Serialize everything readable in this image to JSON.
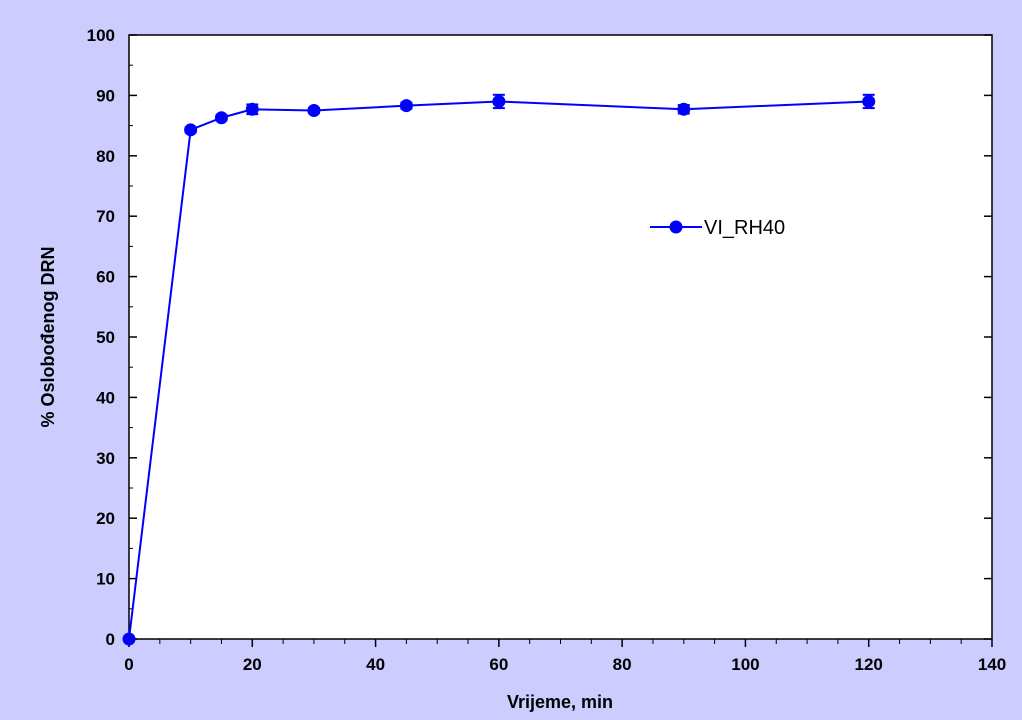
{
  "chart_data": {
    "type": "line",
    "title": "",
    "xlabel": "Vrijeme, min",
    "ylabel": "% Oslobođenog DRN",
    "xlim": [
      0,
      140
    ],
    "ylim": [
      0,
      100
    ],
    "xticks": [
      0,
      20,
      40,
      60,
      80,
      100,
      120,
      140
    ],
    "yticks": [
      0,
      10,
      20,
      30,
      40,
      50,
      60,
      70,
      80,
      90,
      100
    ],
    "grid": false,
    "legend_position": "right",
    "series": [
      {
        "name": "VI_RH40",
        "color": "#0000ff",
        "marker": "circle",
        "x": [
          0,
          10,
          15,
          20,
          30,
          45,
          60,
          90,
          120
        ],
        "y": [
          0,
          84.3,
          86.3,
          87.7,
          87.5,
          88.3,
          89.0,
          87.7,
          89.0
        ],
        "error": [
          0,
          0.4,
          0.4,
          0.8,
          0.4,
          0.5,
          1.1,
          0.7,
          1.1
        ]
      }
    ]
  },
  "colors": {
    "page_background": "#ccccff",
    "plot_background": "#ffffff",
    "series_color": "#0000ff"
  }
}
